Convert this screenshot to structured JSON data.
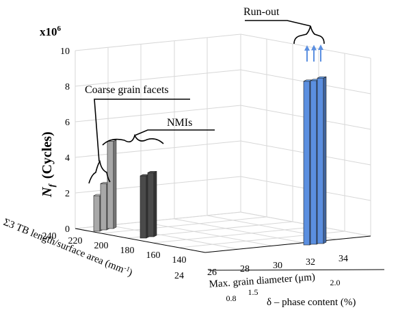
{
  "chart_data": {
    "type": "bar3d",
    "exponent_label": "x10",
    "exponent_power": "6",
    "y_axis": {
      "label_symbol": "N",
      "label_subscript": "f",
      "label_unit": "(Cycles)",
      "ticks": [
        "0",
        "2",
        "4",
        "6",
        "8",
        "10"
      ],
      "lim": [
        0,
        10
      ],
      "multiplier": 1000000
    },
    "axis_tb": {
      "label": "Σ3 TB length/surface area (mm",
      "label_sup": "-1",
      "label_close": ")",
      "ticks": [
        "240",
        "220",
        "200",
        "180",
        "160",
        "140"
      ]
    },
    "axis_grain": {
      "label": "Max. grain diameter (μm)",
      "ticks": [
        "24",
        "26",
        "28",
        "30",
        "32",
        "34"
      ]
    },
    "axis_delta": {
      "label": "δ – phase content (%)",
      "ticks": [
        "0.8",
        "1.5",
        "2.0"
      ]
    },
    "groups": [
      {
        "annotation": "Coarse grain facets",
        "color": "#a8a8a8",
        "values": [
          2.0,
          2.6,
          4.9
        ]
      },
      {
        "annotation": "NMIs",
        "color": "#4a4a4a",
        "values": [
          3.5,
          3.6
        ]
      },
      {
        "annotation": "Run-out",
        "color": "#5b8fe0",
        "values": [
          9.2,
          9.2,
          9.3
        ]
      }
    ],
    "grid": true
  }
}
